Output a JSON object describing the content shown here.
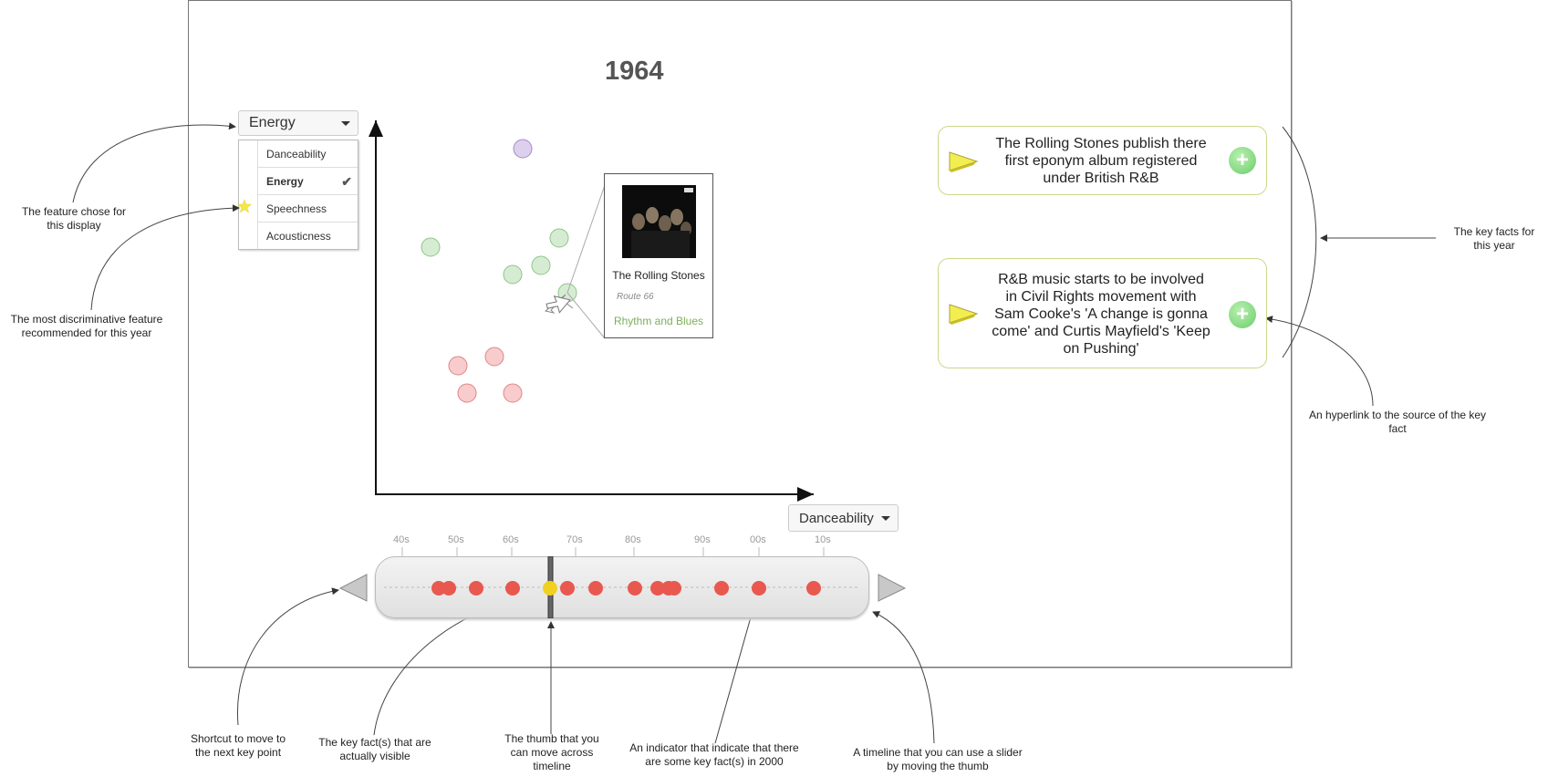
{
  "year": "1964",
  "y_feature": {
    "selected": "Energy",
    "options": [
      "Danceability",
      "Energy",
      "Speechness",
      "Acousticness"
    ],
    "checked_index": 1,
    "recommended_index": 2
  },
  "x_feature": {
    "selected": "Danceability"
  },
  "tooltip": {
    "artist": "The Rolling Stones",
    "song": "Route 66",
    "genre": "Rhythm and Blues"
  },
  "key_facts": [
    {
      "text": "The Rolling Stones publish there first eponym album registered under British R&B"
    },
    {
      "text": "R&B music starts to be involved in Civil Rights movement with Sam Cooke's 'A change is gonna come' and Curtis Mayfield's 'Keep on Pushing'"
    }
  ],
  "timeline": {
    "decades": [
      "40s",
      "50s",
      "60s",
      "70s",
      "80s",
      "90s",
      "00s",
      "10s"
    ]
  },
  "annotations": {
    "feature_chose": "The feature chose for this display",
    "most_discriminative": "The most discriminative feature recommended for this year",
    "key_facts_year": "The key facts for this year",
    "hyperlink": "An hyperlink to the source of the key fact",
    "shortcut": "Shortcut to move to the next key point",
    "visible_facts": "The key fact(s) that are actually visible",
    "thumb": "The thumb that you can move across timeline",
    "indicator": "An indicator that indicate that there are some key fact(s) in 2000",
    "timeline_slider": "A timeline that you can use a slider by moving the thumb"
  },
  "colors": {
    "purple_point": "#dcd0ec",
    "green_point": "#d5ecd2",
    "red_point": "#f8cccc",
    "timeline_dot": "#e8584f",
    "thumb_dot": "#f0d020",
    "fact_border": "#c9d98a",
    "plus_green": "#6ccd6c"
  }
}
